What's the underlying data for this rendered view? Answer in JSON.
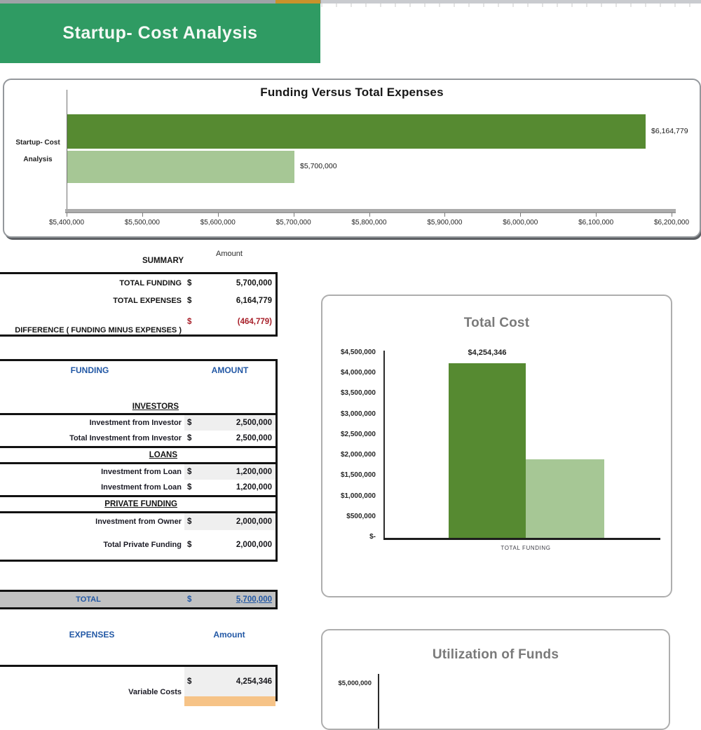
{
  "page": {
    "title": "Startup- Cost Analysis"
  },
  "colors": {
    "banner_green": "#2F9B63",
    "orange_accent": "#C8922B",
    "bar_dark_green": "#568A31",
    "bar_light_green": "#A6C795",
    "blue_text": "#2258A5",
    "red_text": "#A8202A",
    "total_row_bg": "#C1C1C1",
    "shaded_cell_bg": "#EFEFEF",
    "orange_row_bg": "#F6C387",
    "chart_title_gray": "#7A7A7A"
  },
  "summary": {
    "header": "SUMMARY",
    "amount_header": "Amount",
    "rows": [
      {
        "label": "TOTAL FUNDING",
        "currency": "$",
        "value": "5,700,000",
        "negative": false
      },
      {
        "label": "TOTAL EXPENSES",
        "currency": "$",
        "value": "6,164,779",
        "negative": false
      },
      {
        "label": "DIFFERENCE ( FUNDING MINUS EXPENSES )",
        "currency": "$",
        "value": "(464,779)",
        "negative": true
      }
    ]
  },
  "funding": {
    "header": "FUNDING",
    "amount_header": "AMOUNT",
    "sections": [
      {
        "title": "INVESTORS",
        "rows": [
          {
            "label": "Investment from Investor",
            "currency": "$",
            "value": "2,500,000",
            "shaded": true
          },
          {
            "label": "Total Investment from Investor",
            "currency": "$",
            "value": "2,500,000",
            "shaded": false
          }
        ]
      },
      {
        "title": "LOANS",
        "rows": [
          {
            "label": "Investment from Loan",
            "currency": "$",
            "value": "1,200,000",
            "shaded": true
          },
          {
            "label": "Investment from Loan",
            "currency": "$",
            "value": "1,200,000",
            "shaded": false
          }
        ]
      },
      {
        "title": "PRIVATE FUNDING",
        "rows": [
          {
            "label": "Investment from Owner",
            "currency": "$",
            "value": "2,000,000",
            "shaded": true
          },
          {
            "label": "Total Private Funding",
            "currency": "$",
            "value": "2,000,000",
            "shaded": false
          }
        ]
      }
    ],
    "total_row": {
      "label": "TOTAL",
      "currency": "$",
      "value": "5,700,000"
    }
  },
  "expenses": {
    "header": "EXPENSES",
    "amount_header": "Amount",
    "rows": [
      {
        "label": "Variable Costs",
        "currency": "$",
        "value": "4,254,346",
        "shaded": true
      }
    ]
  },
  "chart_data": [
    {
      "type": "bar",
      "orientation": "horizontal",
      "title": "Funding Versus Total Expenses",
      "categories": [
        "Startup- Cost Analysis"
      ],
      "category_label_lines": [
        "Startup- Cost",
        "Analysis"
      ],
      "series": [
        {
          "values": [
            6164779
          ],
          "data_label": "$6,164,779",
          "color": "#568A31"
        },
        {
          "values": [
            5700000
          ],
          "data_label": "$5,700,000",
          "color": "#A6C795"
        }
      ],
      "xlim": [
        5400000,
        6200000
      ],
      "x_tick_interval": 100000,
      "x_ticks": [
        "$5,400,000",
        "$5,500,000",
        "$5,600,000",
        "$5,700,000",
        "$5,800,000",
        "$5,900,000",
        "$6,000,000",
        "$6,100,000",
        "$6,200,000"
      ],
      "grid": false,
      "legend": "none"
    },
    {
      "type": "bar",
      "orientation": "vertical",
      "title": "Total Cost",
      "categories": [
        "TOTAL FUNDING"
      ],
      "series": [
        {
          "values": [
            4254346
          ],
          "data_label": "$4,254,346",
          "color": "#568A31"
        },
        {
          "values": [
            1910433
          ],
          "data_label": "",
          "color": "#A6C795"
        }
      ],
      "ylim": [
        0,
        4500000
      ],
      "y_tick_interval": 500000,
      "y_ticks": [
        "$4,500,000",
        "$4,000,000",
        "$3,500,000",
        "$3,000,000",
        "$2,500,000",
        "$2,000,000",
        "$1,500,000",
        "$1,000,000",
        "$500,000",
        "$-"
      ],
      "grid": false,
      "legend": "none"
    },
    {
      "type": "bar",
      "orientation": "vertical",
      "title": "Utilization of Funds",
      "visible_y_ticks": [
        "$5,000,000"
      ],
      "grid": false,
      "legend": "none"
    }
  ]
}
